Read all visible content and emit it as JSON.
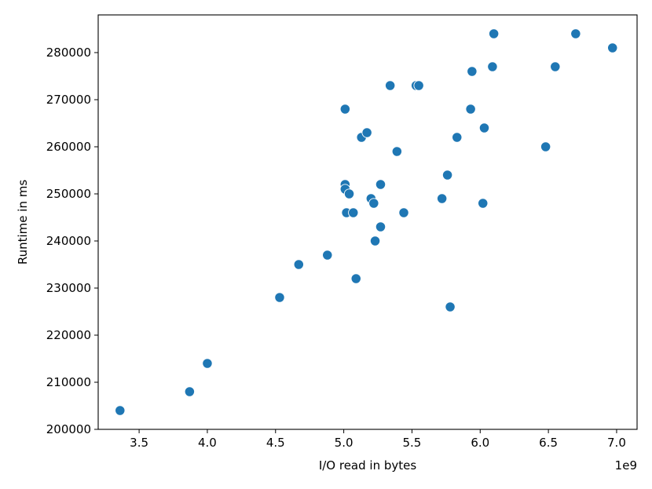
{
  "chart_data": {
    "type": "scatter",
    "title": "",
    "xlabel": "I/O read in bytes",
    "ylabel": "Runtime in ms",
    "x_offset_label": "1e9",
    "xlim": [
      3.2,
      7.15
    ],
    "ylim": [
      200000,
      288000
    ],
    "xticks": [
      3.5,
      4.0,
      4.5,
      5.0,
      5.5,
      6.0,
      6.5,
      7.0
    ],
    "xtick_labels": [
      "3.5",
      "4.0",
      "4.5",
      "5.0",
      "5.5",
      "6.0",
      "6.5",
      "7.0"
    ],
    "yticks": [
      200000,
      210000,
      220000,
      230000,
      240000,
      250000,
      260000,
      270000,
      280000
    ],
    "ytick_labels": [
      "200000",
      "210000",
      "220000",
      "230000",
      "240000",
      "250000",
      "260000",
      "270000",
      "280000"
    ],
    "grid": false,
    "marker_color": "#1f77b4",
    "points": [
      {
        "x": 3.36,
        "y": 204000
      },
      {
        "x": 3.87,
        "y": 208000
      },
      {
        "x": 4.0,
        "y": 214000
      },
      {
        "x": 4.53,
        "y": 228000
      },
      {
        "x": 4.67,
        "y": 235000
      },
      {
        "x": 4.88,
        "y": 237000
      },
      {
        "x": 5.01,
        "y": 268000
      },
      {
        "x": 5.01,
        "y": 252000
      },
      {
        "x": 5.01,
        "y": 251000
      },
      {
        "x": 5.02,
        "y": 246000
      },
      {
        "x": 5.04,
        "y": 250000
      },
      {
        "x": 5.07,
        "y": 246000
      },
      {
        "x": 5.09,
        "y": 232000
      },
      {
        "x": 5.13,
        "y": 262000
      },
      {
        "x": 5.17,
        "y": 263000
      },
      {
        "x": 5.2,
        "y": 249000
      },
      {
        "x": 5.22,
        "y": 248000
      },
      {
        "x": 5.23,
        "y": 240000
      },
      {
        "x": 5.27,
        "y": 252000
      },
      {
        "x": 5.27,
        "y": 243000
      },
      {
        "x": 5.34,
        "y": 273000
      },
      {
        "x": 5.39,
        "y": 259000
      },
      {
        "x": 5.44,
        "y": 246000
      },
      {
        "x": 5.53,
        "y": 273000
      },
      {
        "x": 5.55,
        "y": 273000
      },
      {
        "x": 5.72,
        "y": 249000
      },
      {
        "x": 5.76,
        "y": 254000
      },
      {
        "x": 5.78,
        "y": 226000
      },
      {
        "x": 5.83,
        "y": 262000
      },
      {
        "x": 5.93,
        "y": 268000
      },
      {
        "x": 5.94,
        "y": 276000
      },
      {
        "x": 6.02,
        "y": 248000
      },
      {
        "x": 6.03,
        "y": 264000
      },
      {
        "x": 6.09,
        "y": 277000
      },
      {
        "x": 6.1,
        "y": 284000
      },
      {
        "x": 6.48,
        "y": 260000
      },
      {
        "x": 6.55,
        "y": 277000
      },
      {
        "x": 6.7,
        "y": 284000
      },
      {
        "x": 6.97,
        "y": 281000
      }
    ]
  }
}
